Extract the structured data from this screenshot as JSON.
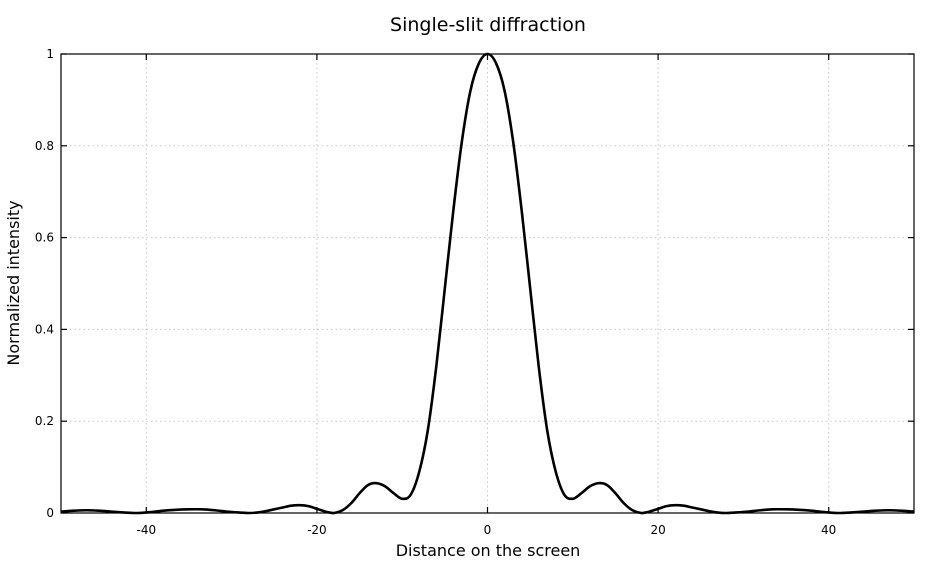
{
  "chart_data": {
    "type": "line",
    "title": "Single-slit diffraction",
    "xlabel": "Distance on the screen",
    "ylabel": "Normalized intensity",
    "xlim": [
      -50,
      50
    ],
    "ylim": [
      0,
      1
    ],
    "xticks": [
      -40,
      -20,
      0,
      20,
      40
    ],
    "yticks": [
      0,
      0.2,
      0.4,
      0.6,
      0.8,
      1
    ],
    "ytick_labels": [
      "0",
      "0.2",
      "0.4",
      "0.6",
      "0.8",
      "1"
    ],
    "grid": true,
    "grid_style": "dotted",
    "series_color": "#000000",
    "series": [
      {
        "x": [
          -50,
          -48.5,
          -47,
          -45.5,
          -44,
          -42.5,
          -41,
          -39.5,
          -38,
          -36.5,
          -35,
          -33.5,
          -32,
          -30.5,
          -29,
          -28,
          -27,
          -26,
          -25,
          -24,
          -23,
          -22,
          -21,
          -20,
          -19,
          -18.5,
          -18,
          -17,
          -16,
          -15,
          -14,
          -13,
          -12,
          -11,
          -10,
          -9,
          -8,
          -7,
          -6,
          -5,
          -4,
          -3,
          -2,
          -1,
          0,
          1,
          2,
          3,
          4,
          5,
          6,
          7,
          8,
          9,
          10,
          11,
          12,
          13,
          14,
          15,
          16,
          17,
          18,
          18.5,
          19,
          20,
          21,
          22,
          23,
          24,
          25,
          26,
          27,
          28,
          29,
          30.5,
          32,
          33.5,
          35,
          36.5,
          38,
          39.5,
          41,
          42.5,
          44,
          45.5,
          47,
          48.5,
          50
        ],
        "y": [
          0.003,
          0.005,
          0.006,
          0.005,
          0.003,
          0.001,
          0.0,
          0.002,
          0.005,
          0.007,
          0.008,
          0.008,
          0.006,
          0.003,
          0.001,
          0.0,
          0.001,
          0.004,
          0.008,
          0.012,
          0.016,
          0.017,
          0.015,
          0.009,
          0.003,
          0.001,
          0.0,
          0.006,
          0.021,
          0.043,
          0.061,
          0.065,
          0.058,
          0.043,
          0.031,
          0.04,
          0.09,
          0.18,
          0.32,
          0.49,
          0.66,
          0.81,
          0.92,
          0.98,
          1.0,
          0.98,
          0.92,
          0.81,
          0.66,
          0.49,
          0.32,
          0.18,
          0.09,
          0.04,
          0.031,
          0.043,
          0.058,
          0.065,
          0.061,
          0.043,
          0.021,
          0.006,
          0.0,
          0.001,
          0.003,
          0.009,
          0.015,
          0.017,
          0.016,
          0.012,
          0.008,
          0.004,
          0.001,
          0.0,
          0.001,
          0.003,
          0.006,
          0.008,
          0.008,
          0.007,
          0.005,
          0.002,
          0.0,
          0.001,
          0.003,
          0.005,
          0.006,
          0.005,
          0.003
        ]
      }
    ]
  }
}
